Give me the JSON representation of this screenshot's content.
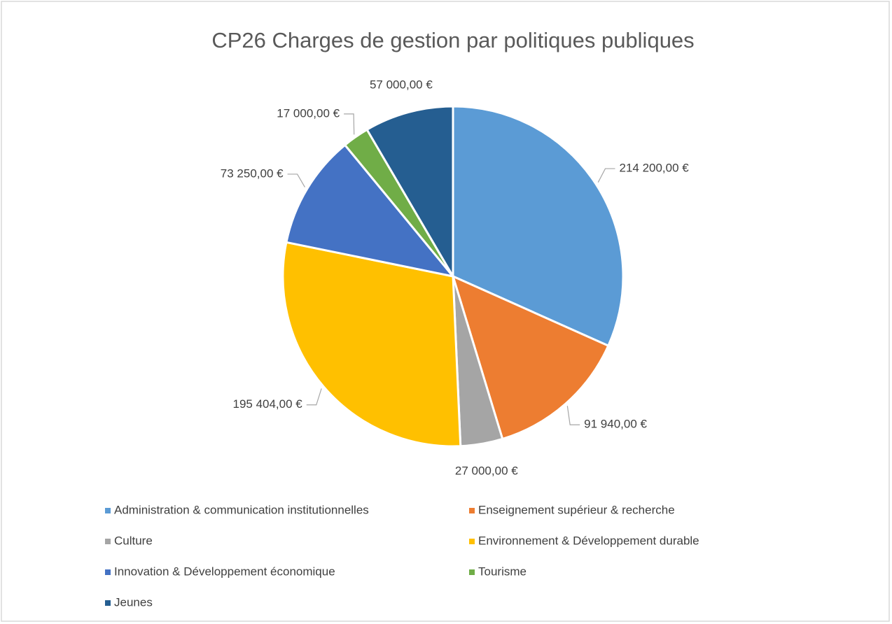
{
  "chart_data": {
    "type": "pie",
    "title": "CP26 Charges de gestion par politiques publiques",
    "categories": [
      "Administration & communication institutionnelles",
      "Enseignement supérieur & recherche",
      "Culture",
      "Environnement & Développement durable",
      "Innovation & Développement économique",
      "Tourisme",
      "Jeunes"
    ],
    "values": [
      214200,
      91940,
      27000,
      195404,
      73250,
      17000,
      57000
    ],
    "value_labels": [
      "214 200,00 €",
      "91 940,00 €",
      "27 000,00 €",
      "195 404,00 €",
      "73 250,00 €",
      "17 000,00 €",
      "57 000,00 €"
    ],
    "colors": [
      "#5b9bd5",
      "#ed7d31",
      "#a5a5a5",
      "#ffc000",
      "#4472c4",
      "#70ad47",
      "#255e91"
    ],
    "legend": "bottom"
  }
}
